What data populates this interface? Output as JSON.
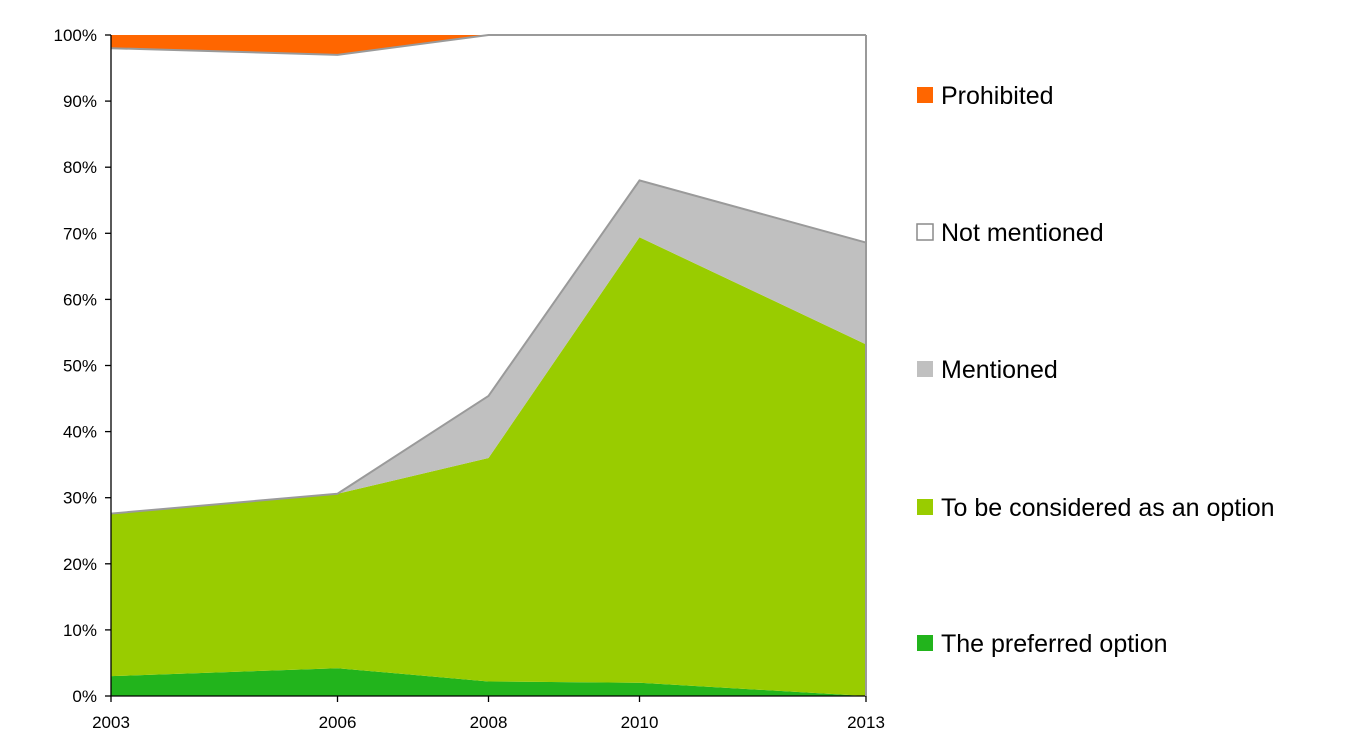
{
  "chart_data": {
    "type": "area",
    "stacked": true,
    "x": [
      "2003",
      "2006",
      "2008",
      "2010",
      "2013"
    ],
    "x_positions": [
      2003,
      2006,
      2008,
      2010,
      2013
    ],
    "y_ticks": [
      "0%",
      "10%",
      "20%",
      "30%",
      "40%",
      "50%",
      "60%",
      "70%",
      "80%",
      "90%",
      "100%"
    ],
    "ylim": [
      0,
      100
    ],
    "grid": false,
    "legend_position": "right",
    "series": [
      {
        "name": "The preferred option",
        "values": [
          3.0,
          4.2,
          2.2,
          2.0,
          0.0
        ],
        "color": "#22b41c"
      },
      {
        "name": "To be considered as an option",
        "values": [
          24.6,
          26.4,
          33.8,
          67.4,
          53.2
        ],
        "color": "#99cc00"
      },
      {
        "name": "Mentioned",
        "values": [
          0.0,
          0.0,
          9.4,
          8.6,
          15.4
        ],
        "color": "#c0c0c0"
      },
      {
        "name": "Not mentioned",
        "values": [
          70.4,
          66.4,
          54.6,
          22.0,
          31.4
        ],
        "color": "#ffffff"
      },
      {
        "name": "Prohibited",
        "values": [
          2.0,
          3.0,
          0.0,
          0.0,
          0.0
        ],
        "color": "#ff6600"
      }
    ],
    "legend_order": [
      "Prohibited",
      "Not mentioned",
      "Mentioned",
      "To be considered as an option",
      "The preferred option"
    ]
  }
}
